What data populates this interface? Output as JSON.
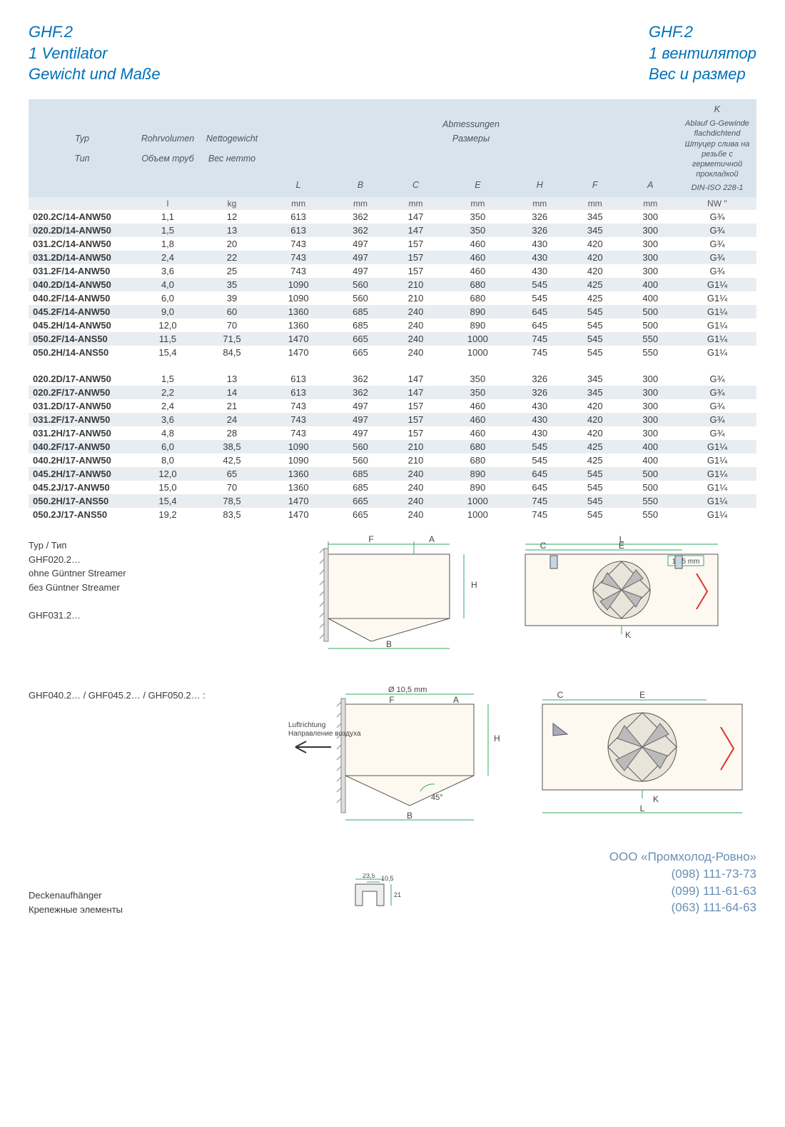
{
  "header": {
    "left": [
      "GHF.2",
      "1 Ventilator",
      "Gewicht und Maße"
    ],
    "right": [
      "GHF.2",
      "1 вентилятор",
      "Вес и размер"
    ]
  },
  "table": {
    "groupHeaders": {
      "abmessungen_de": "Abmessungen",
      "abmessungen_ru": "Размеры",
      "k": "K",
      "k_sub_de": "Ablauf G-Gewinde flachdichtend",
      "k_sub_ru": "Штуцер слива на резьбе с герметичной прокладкой",
      "k_norm": "DIN-ISO 228-1",
      "nw": "NW ''"
    },
    "columns": [
      {
        "de": "Typ",
        "ru": "Тип",
        "unit": ""
      },
      {
        "de": "Rohrvolumen",
        "ru": "Объем труб",
        "unit": "l"
      },
      {
        "de": "Nettogewicht",
        "ru": "Вес нетто",
        "unit": "kg"
      },
      {
        "de": "L",
        "ru": "",
        "unit": "mm"
      },
      {
        "de": "B",
        "ru": "",
        "unit": "mm"
      },
      {
        "de": "C",
        "ru": "",
        "unit": "mm"
      },
      {
        "de": "E",
        "ru": "",
        "unit": "mm"
      },
      {
        "de": "H",
        "ru": "",
        "unit": "mm"
      },
      {
        "de": "F",
        "ru": "",
        "unit": "mm"
      },
      {
        "de": "A",
        "ru": "",
        "unit": "mm"
      },
      {
        "de": "",
        "ru": "",
        "unit": ""
      }
    ],
    "rows14": [
      [
        "020.2C/14-ANW50",
        "1,1",
        "12",
        "613",
        "362",
        "147",
        "350",
        "326",
        "345",
        "300",
        "G¾"
      ],
      [
        "020.2D/14-ANW50",
        "1,5",
        "13",
        "613",
        "362",
        "147",
        "350",
        "326",
        "345",
        "300",
        "G¾"
      ],
      [
        "031.2C/14-ANW50",
        "1,8",
        "20",
        "743",
        "497",
        "157",
        "460",
        "430",
        "420",
        "300",
        "G¾"
      ],
      [
        "031.2D/14-ANW50",
        "2,4",
        "22",
        "743",
        "497",
        "157",
        "460",
        "430",
        "420",
        "300",
        "G¾"
      ],
      [
        "031.2F/14-ANW50",
        "3,6",
        "25",
        "743",
        "497",
        "157",
        "460",
        "430",
        "420",
        "300",
        "G¾"
      ],
      [
        "040.2D/14-ANW50",
        "4,0",
        "35",
        "1090",
        "560",
        "210",
        "680",
        "545",
        "425",
        "400",
        "G1¼"
      ],
      [
        "040.2F/14-ANW50",
        "6,0",
        "39",
        "1090",
        "560",
        "210",
        "680",
        "545",
        "425",
        "400",
        "G1¼"
      ],
      [
        "045.2F/14-ANW50",
        "9,0",
        "60",
        "1360",
        "685",
        "240",
        "890",
        "645",
        "545",
        "500",
        "G1¼"
      ],
      [
        "045.2H/14-ANW50",
        "12,0",
        "70",
        "1360",
        "685",
        "240",
        "890",
        "645",
        "545",
        "500",
        "G1¼"
      ],
      [
        "050.2F/14-ANS50",
        "11,5",
        "71,5",
        "1470",
        "665",
        "240",
        "1000",
        "745",
        "545",
        "550",
        "G1¼"
      ],
      [
        "050.2H/14-ANS50",
        "15,4",
        "84,5",
        "1470",
        "665",
        "240",
        "1000",
        "745",
        "545",
        "550",
        "G1¼"
      ]
    ],
    "rows17": [
      [
        "020.2D/17-ANW50",
        "1,5",
        "13",
        "613",
        "362",
        "147",
        "350",
        "326",
        "345",
        "300",
        "G¾"
      ],
      [
        "020.2F/17-ANW50",
        "2,2",
        "14",
        "613",
        "362",
        "147",
        "350",
        "326",
        "345",
        "300",
        "G¾"
      ],
      [
        "031.2D/17-ANW50",
        "2,4",
        "21",
        "743",
        "497",
        "157",
        "460",
        "430",
        "420",
        "300",
        "G¾"
      ],
      [
        "031.2F/17-ANW50",
        "3,6",
        "24",
        "743",
        "497",
        "157",
        "460",
        "430",
        "420",
        "300",
        "G¾"
      ],
      [
        "031.2H/17-ANW50",
        "4,8",
        "28",
        "743",
        "497",
        "157",
        "460",
        "430",
        "420",
        "300",
        "G¾"
      ],
      [
        "040.2F/17-ANW50",
        "6,0",
        "38,5",
        "1090",
        "560",
        "210",
        "680",
        "545",
        "425",
        "400",
        "G1¼"
      ],
      [
        "040.2H/17-ANW50",
        "8,0",
        "42,5",
        "1090",
        "560",
        "210",
        "680",
        "545",
        "425",
        "400",
        "G1¼"
      ],
      [
        "045.2H/17-ANW50",
        "12,0",
        "65",
        "1360",
        "685",
        "240",
        "890",
        "645",
        "545",
        "500",
        "G1¼"
      ],
      [
        "045.2J/17-ANW50",
        "15,0",
        "70",
        "1360",
        "685",
        "240",
        "890",
        "645",
        "545",
        "500",
        "G1¼"
      ],
      [
        "050.2H/17-ANS50",
        "15,4",
        "78,5",
        "1470",
        "665",
        "240",
        "1000",
        "745",
        "545",
        "550",
        "G1¼"
      ],
      [
        "050.2J/17-ANS50",
        "19,2",
        "83,5",
        "1470",
        "665",
        "240",
        "1000",
        "745",
        "545",
        "550",
        "G1¼"
      ]
    ]
  },
  "notes": {
    "type_label": "Typ / Тип",
    "l1": "GHF020.2…",
    "l2_de": "ohne Güntner Streamer",
    "l2_ru": "без Güntner Streamer",
    "l3": "GHF031.2…",
    "group2": "GHF040.2…  /  GHF045.2…  /  GHF050.2… :",
    "airflow_de": "Luftrichtung",
    "airflow_ru": "Направление воздуха",
    "hole_dia": "Ø 10,5 mm",
    "hole_slot": "10,5 mm",
    "angle": "45°"
  },
  "bracket": {
    "w": "23,5",
    "slot": "10,5",
    "h": "21"
  },
  "footer": {
    "left_de": "Deckenaufhänger",
    "left_ru": "Крепежные элементы",
    "company": "ООО «Промхолод-Ровно»",
    "phones": [
      "(098) 111-73-73",
      "(099) 111-61-63",
      "(063) 111-64-63"
    ]
  },
  "colors": {
    "brand_blue": "#0070b8",
    "header_bg": "#d9e3ed",
    "alt_bg": "#e8edf2",
    "diagram_fill": "#fdf9f0",
    "footer_blue": "#6a8fb5"
  }
}
